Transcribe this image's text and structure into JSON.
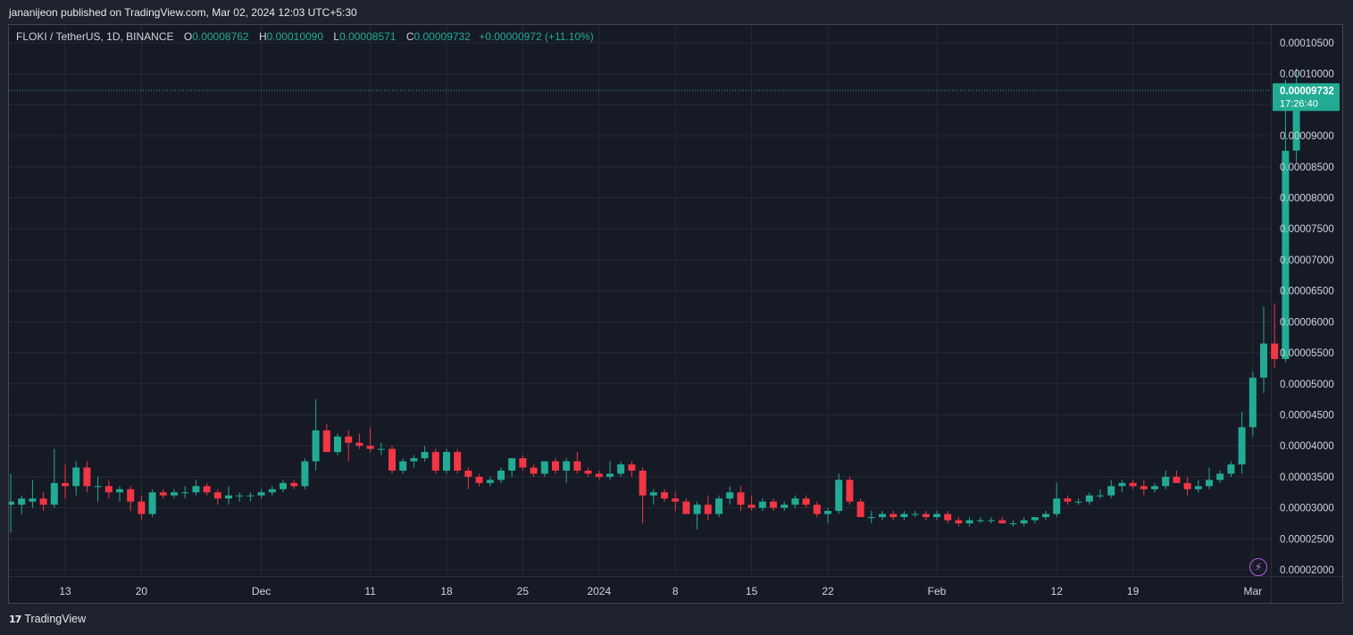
{
  "publish_line": "jananijeon published on TradingView.com, Mar 02, 2024 12:03 UTC+5:30",
  "legend": {
    "symbol": "FLOKI / TetherUS, 1D, BINANCE",
    "o_label": "O",
    "o": "0.00008762",
    "h_label": "H",
    "h": "0.00010090",
    "l_label": "L",
    "l": "0.00008571",
    "c_label": "C",
    "c": "0.00009732",
    "change": "+0.00000972 (+11.10%)"
  },
  "price_badge": {
    "price": "0.00009732",
    "countdown": "17:26:40"
  },
  "footer": {
    "brand": "TradingView",
    "logo_text": "17"
  },
  "colors": {
    "up": "#22ab94",
    "down": "#f23645",
    "background": "#161a25",
    "grid": "#262a36",
    "axis_text": "#d1d4dc"
  },
  "icons": [
    "tradingview-logo-icon",
    "flash-icon"
  ],
  "chart_data": {
    "type": "candlestick",
    "y_axis": {
      "min": 1.8e-05,
      "max": 0.000106,
      "ticks": [
        "0.00010500",
        "0.00010000",
        "0.00009500",
        "0.00009000",
        "0.00008500",
        "0.00008000",
        "0.00007500",
        "0.00007000",
        "0.00006500",
        "0.00006000",
        "0.00005500",
        "0.00005000",
        "0.00004500",
        "0.00004000",
        "0.00003500",
        "0.00003000",
        "0.00002500",
        "0.00002000"
      ]
    },
    "x_axis": {
      "ticks": [
        {
          "label": "13",
          "date": "2023-11-13"
        },
        {
          "label": "20",
          "date": "2023-11-20"
        },
        {
          "label": "Dec",
          "date": "2023-12-01"
        },
        {
          "label": "11",
          "date": "2023-12-11"
        },
        {
          "label": "18",
          "date": "2023-12-18"
        },
        {
          "label": "25",
          "date": "2023-12-25"
        },
        {
          "label": "2024",
          "date": "2024-01-01"
        },
        {
          "label": "8",
          "date": "2024-01-08"
        },
        {
          "label": "15",
          "date": "2024-01-15"
        },
        {
          "label": "22",
          "date": "2024-01-22"
        },
        {
          "label": "Feb",
          "date": "2024-02-01"
        },
        {
          "label": "12",
          "date": "2024-02-12"
        },
        {
          "label": "19",
          "date": "2024-02-19"
        },
        {
          "label": "Mar",
          "date": "2024-03-01"
        }
      ]
    },
    "last_price": 9.732e-05,
    "candles_date_range": [
      "2023-11-08",
      "2024-03-02"
    ],
    "candles": [
      {
        "o": 3.05,
        "h": 3.55,
        "l": 2.6,
        "c": 3.1
      },
      {
        "o": 3.05,
        "h": 3.2,
        "l": 2.9,
        "c": 3.15
      },
      {
        "o": 3.1,
        "h": 3.45,
        "l": 3.0,
        "c": 3.15
      },
      {
        "o": 3.15,
        "h": 3.25,
        "l": 2.95,
        "c": 3.05
      },
      {
        "o": 3.05,
        "h": 3.95,
        "l": 3.0,
        "c": 3.4
      },
      {
        "o": 3.4,
        "h": 3.7,
        "l": 3.15,
        "c": 3.35
      },
      {
        "o": 3.35,
        "h": 3.75,
        "l": 3.2,
        "c": 3.65
      },
      {
        "o": 3.65,
        "h": 3.75,
        "l": 3.25,
        "c": 3.35
      },
      {
        "o": 3.35,
        "h": 3.5,
        "l": 3.1,
        "c": 3.35
      },
      {
        "o": 3.35,
        "h": 3.45,
        "l": 3.15,
        "c": 3.25
      },
      {
        "o": 3.25,
        "h": 3.35,
        "l": 3.1,
        "c": 3.3
      },
      {
        "o": 3.3,
        "h": 3.35,
        "l": 2.95,
        "c": 3.1
      },
      {
        "o": 3.1,
        "h": 3.2,
        "l": 2.8,
        "c": 2.9
      },
      {
        "o": 2.9,
        "h": 3.3,
        "l": 2.85,
        "c": 3.25
      },
      {
        "o": 3.25,
        "h": 3.3,
        "l": 3.15,
        "c": 3.2
      },
      {
        "o": 3.2,
        "h": 3.3,
        "l": 3.15,
        "c": 3.25
      },
      {
        "o": 3.25,
        "h": 3.35,
        "l": 3.15,
        "c": 3.25
      },
      {
        "o": 3.25,
        "h": 3.45,
        "l": 3.2,
        "c": 3.35
      },
      {
        "o": 3.35,
        "h": 3.4,
        "l": 3.2,
        "c": 3.25
      },
      {
        "o": 3.25,
        "h": 3.3,
        "l": 3.05,
        "c": 3.15
      },
      {
        "o": 3.15,
        "h": 3.35,
        "l": 3.05,
        "c": 3.2
      },
      {
        "o": 3.2,
        "h": 3.25,
        "l": 3.1,
        "c": 3.2
      },
      {
        "o": 3.2,
        "h": 3.25,
        "l": 3.1,
        "c": 3.2
      },
      {
        "o": 3.2,
        "h": 3.3,
        "l": 3.15,
        "c": 3.25
      },
      {
        "o": 3.25,
        "h": 3.35,
        "l": 3.2,
        "c": 3.3
      },
      {
        "o": 3.3,
        "h": 3.45,
        "l": 3.25,
        "c": 3.4
      },
      {
        "o": 3.4,
        "h": 3.45,
        "l": 3.3,
        "c": 3.35
      },
      {
        "o": 3.35,
        "h": 3.8,
        "l": 3.3,
        "c": 3.75
      },
      {
        "o": 3.75,
        "h": 4.75,
        "l": 3.6,
        "c": 4.25
      },
      {
        "o": 4.25,
        "h": 4.35,
        "l": 3.9,
        "c": 3.9
      },
      {
        "o": 3.9,
        "h": 4.2,
        "l": 3.85,
        "c": 4.15
      },
      {
        "o": 4.15,
        "h": 4.25,
        "l": 3.75,
        "c": 4.05
      },
      {
        "o": 4.05,
        "h": 4.2,
        "l": 3.95,
        "c": 4.0
      },
      {
        "o": 4.0,
        "h": 4.3,
        "l": 3.9,
        "c": 3.95
      },
      {
        "o": 3.95,
        "h": 4.05,
        "l": 3.85,
        "c": 3.95
      },
      {
        "o": 3.95,
        "h": 4.0,
        "l": 3.55,
        "c": 3.6
      },
      {
        "o": 3.6,
        "h": 3.8,
        "l": 3.55,
        "c": 3.75
      },
      {
        "o": 3.75,
        "h": 3.85,
        "l": 3.65,
        "c": 3.8
      },
      {
        "o": 3.8,
        "h": 4.0,
        "l": 3.75,
        "c": 3.9
      },
      {
        "o": 3.9,
        "h": 3.95,
        "l": 3.55,
        "c": 3.6
      },
      {
        "o": 3.6,
        "h": 3.95,
        "l": 3.55,
        "c": 3.9
      },
      {
        "o": 3.9,
        "h": 3.95,
        "l": 3.55,
        "c": 3.6
      },
      {
        "o": 3.6,
        "h": 3.65,
        "l": 3.3,
        "c": 3.5
      },
      {
        "o": 3.5,
        "h": 3.55,
        "l": 3.35,
        "c": 3.4
      },
      {
        "o": 3.4,
        "h": 3.5,
        "l": 3.35,
        "c": 3.45
      },
      {
        "o": 3.45,
        "h": 3.65,
        "l": 3.4,
        "c": 3.6
      },
      {
        "o": 3.6,
        "h": 3.8,
        "l": 3.5,
        "c": 3.8
      },
      {
        "o": 3.8,
        "h": 3.85,
        "l": 3.6,
        "c": 3.65
      },
      {
        "o": 3.65,
        "h": 3.7,
        "l": 3.5,
        "c": 3.55
      },
      {
        "o": 3.55,
        "h": 3.75,
        "l": 3.5,
        "c": 3.75
      },
      {
        "o": 3.75,
        "h": 3.8,
        "l": 3.55,
        "c": 3.6
      },
      {
        "o": 3.6,
        "h": 3.8,
        "l": 3.4,
        "c": 3.75
      },
      {
        "o": 3.75,
        "h": 3.9,
        "l": 3.55,
        "c": 3.6
      },
      {
        "o": 3.6,
        "h": 3.65,
        "l": 3.5,
        "c": 3.55
      },
      {
        "o": 3.55,
        "h": 3.6,
        "l": 3.45,
        "c": 3.5
      },
      {
        "o": 3.5,
        "h": 3.75,
        "l": 3.45,
        "c": 3.55
      },
      {
        "o": 3.55,
        "h": 3.75,
        "l": 3.5,
        "c": 3.7
      },
      {
        "o": 3.7,
        "h": 3.75,
        "l": 3.5,
        "c": 3.6
      },
      {
        "o": 3.6,
        "h": 3.65,
        "l": 2.75,
        "c": 3.2
      },
      {
        "o": 3.2,
        "h": 3.3,
        "l": 3.05,
        "c": 3.25
      },
      {
        "o": 3.25,
        "h": 3.3,
        "l": 3.1,
        "c": 3.15
      },
      {
        "o": 3.15,
        "h": 3.25,
        "l": 2.95,
        "c": 3.1
      },
      {
        "o": 3.1,
        "h": 3.15,
        "l": 2.9,
        "c": 2.9
      },
      {
        "o": 2.9,
        "h": 3.1,
        "l": 2.65,
        "c": 3.05
      },
      {
        "o": 3.05,
        "h": 3.2,
        "l": 2.8,
        "c": 2.9
      },
      {
        "o": 2.9,
        "h": 3.2,
        "l": 2.85,
        "c": 3.15
      },
      {
        "o": 3.15,
        "h": 3.35,
        "l": 3.05,
        "c": 3.25
      },
      {
        "o": 3.25,
        "h": 3.35,
        "l": 2.95,
        "c": 3.05
      },
      {
        "o": 3.05,
        "h": 3.2,
        "l": 2.95,
        "c": 3.0
      },
      {
        "o": 3.0,
        "h": 3.15,
        "l": 2.95,
        "c": 3.1
      },
      {
        "o": 3.1,
        "h": 3.15,
        "l": 2.95,
        "c": 3.0
      },
      {
        "o": 3.0,
        "h": 3.1,
        "l": 2.95,
        "c": 3.05
      },
      {
        "o": 3.05,
        "h": 3.2,
        "l": 3.0,
        "c": 3.15
      },
      {
        "o": 3.15,
        "h": 3.2,
        "l": 3.0,
        "c": 3.05
      },
      {
        "o": 3.05,
        "h": 3.1,
        "l": 2.85,
        "c": 2.9
      },
      {
        "o": 2.9,
        "h": 3.0,
        "l": 2.75,
        "c": 2.95
      },
      {
        "o": 2.95,
        "h": 3.55,
        "l": 2.9,
        "c": 3.45
      },
      {
        "o": 3.45,
        "h": 3.5,
        "l": 3.05,
        "c": 3.1
      },
      {
        "o": 3.1,
        "h": 3.15,
        "l": 2.85,
        "c": 2.85
      },
      {
        "o": 2.85,
        "h": 2.95,
        "l": 2.75,
        "c": 2.85
      },
      {
        "o": 2.85,
        "h": 2.95,
        "l": 2.8,
        "c": 2.9
      },
      {
        "o": 2.9,
        "h": 2.95,
        "l": 2.8,
        "c": 2.85
      },
      {
        "o": 2.85,
        "h": 2.95,
        "l": 2.8,
        "c": 2.9
      },
      {
        "o": 2.9,
        "h": 2.95,
        "l": 2.85,
        "c": 2.9
      },
      {
        "o": 2.9,
        "h": 2.95,
        "l": 2.8,
        "c": 2.85
      },
      {
        "o": 2.85,
        "h": 2.95,
        "l": 2.8,
        "c": 2.9
      },
      {
        "o": 2.9,
        "h": 2.95,
        "l": 2.75,
        "c": 2.8
      },
      {
        "o": 2.8,
        "h": 2.85,
        "l": 2.7,
        "c": 2.75
      },
      {
        "o": 2.75,
        "h": 2.85,
        "l": 2.7,
        "c": 2.8
      },
      {
        "o": 2.8,
        "h": 2.85,
        "l": 2.75,
        "c": 2.8
      },
      {
        "o": 2.8,
        "h": 2.85,
        "l": 2.75,
        "c": 2.8
      },
      {
        "o": 2.8,
        "h": 2.85,
        "l": 2.75,
        "c": 2.75
      },
      {
        "o": 2.75,
        "h": 2.8,
        "l": 2.7,
        "c": 2.75
      },
      {
        "o": 2.75,
        "h": 2.85,
        "l": 2.7,
        "c": 2.8
      },
      {
        "o": 2.8,
        "h": 2.85,
        "l": 2.75,
        "c": 2.85
      },
      {
        "o": 2.85,
        "h": 2.95,
        "l": 2.8,
        "c": 2.9
      },
      {
        "o": 2.9,
        "h": 3.4,
        "l": 2.85,
        "c": 3.15
      },
      {
        "o": 3.15,
        "h": 3.2,
        "l": 3.05,
        "c": 3.1
      },
      {
        "o": 3.1,
        "h": 3.15,
        "l": 3.05,
        "c": 3.1
      },
      {
        "o": 3.1,
        "h": 3.25,
        "l": 3.05,
        "c": 3.2
      },
      {
        "o": 3.2,
        "h": 3.3,
        "l": 3.15,
        "c": 3.2
      },
      {
        "o": 3.2,
        "h": 3.45,
        "l": 3.15,
        "c": 3.35
      },
      {
        "o": 3.35,
        "h": 3.45,
        "l": 3.25,
        "c": 3.4
      },
      {
        "o": 3.4,
        "h": 3.45,
        "l": 3.3,
        "c": 3.35
      },
      {
        "o": 3.35,
        "h": 3.45,
        "l": 3.2,
        "c": 3.3
      },
      {
        "o": 3.3,
        "h": 3.4,
        "l": 3.25,
        "c": 3.35
      },
      {
        "o": 3.35,
        "h": 3.6,
        "l": 3.3,
        "c": 3.5
      },
      {
        "o": 3.5,
        "h": 3.6,
        "l": 3.4,
        "c": 3.4
      },
      {
        "o": 3.4,
        "h": 3.5,
        "l": 3.2,
        "c": 3.3
      },
      {
        "o": 3.3,
        "h": 3.45,
        "l": 3.25,
        "c": 3.35
      },
      {
        "o": 3.35,
        "h": 3.65,
        "l": 3.3,
        "c": 3.45
      },
      {
        "o": 3.45,
        "h": 3.6,
        "l": 3.4,
        "c": 3.55
      },
      {
        "o": 3.55,
        "h": 3.75,
        "l": 3.5,
        "c": 3.7
      },
      {
        "o": 3.7,
        "h": 4.55,
        "l": 3.55,
        "c": 4.3
      },
      {
        "o": 4.3,
        "h": 5.2,
        "l": 4.15,
        "c": 5.1
      },
      {
        "o": 5.1,
        "h": 6.25,
        "l": 4.85,
        "c": 5.65
      },
      {
        "o": 5.65,
        "h": 6.3,
        "l": 5.25,
        "c": 5.4
      },
      {
        "o": 5.4,
        "h": 9.9,
        "l": 5.35,
        "c": 8.76
      },
      {
        "o": 8.762,
        "h": 10.09,
        "l": 8.571,
        "c": 9.732
      }
    ],
    "candle_unit": "1e-5 USDT"
  }
}
